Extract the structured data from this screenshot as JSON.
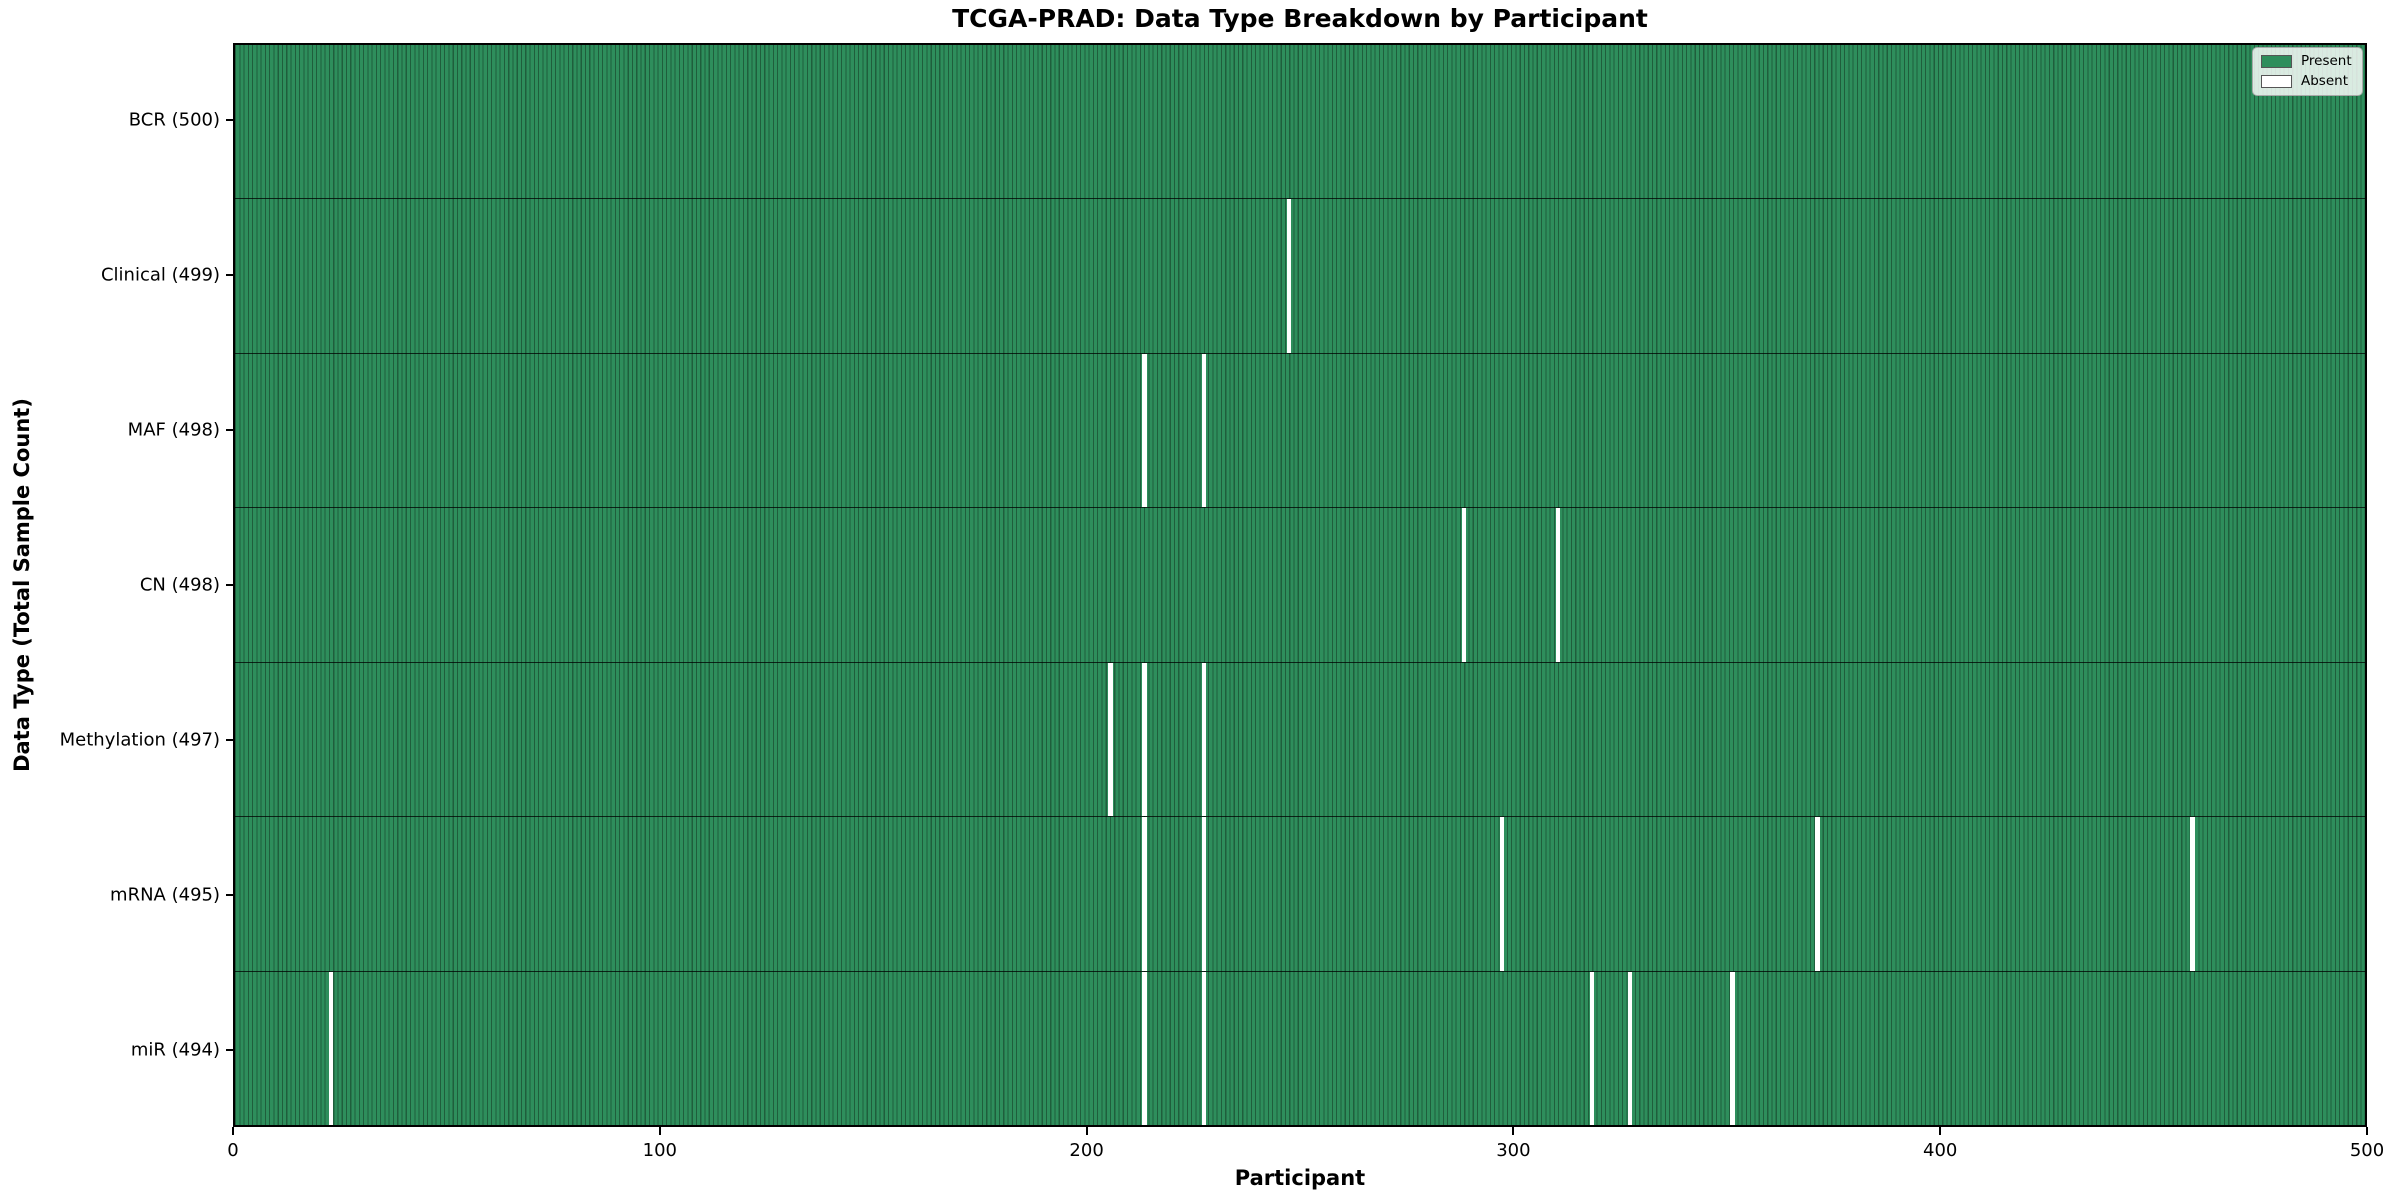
{
  "title": "TCGA-PRAD: Data Type Breakdown by Participant",
  "xlabel": "Participant",
  "ylabel": "Data Type (Total Sample Count)",
  "colors": {
    "present": "#2e8e5c",
    "present_edge": "#1f5e3c",
    "absent": "#ffffff"
  },
  "legend": {
    "present_label": "Present",
    "absent_label": "Absent"
  },
  "chart_data": {
    "type": "heatmap",
    "title": "TCGA-PRAD: Data Type Breakdown by Participant",
    "xlabel": "Participant",
    "ylabel": "Data Type (Total Sample Count)",
    "x_axis": {
      "min": 0,
      "max": 500,
      "ticks": [
        0,
        100,
        200,
        300,
        400,
        500
      ]
    },
    "n_participants": 500,
    "legend_position": "upper right",
    "legend_entries": [
      {
        "label": "Present",
        "value": 1
      },
      {
        "label": "Absent",
        "value": 0
      }
    ],
    "rows": [
      {
        "label": "BCR (500)",
        "data_type": "BCR",
        "total": 500,
        "absent_participants": []
      },
      {
        "label": "Clinical (499)",
        "data_type": "Clinical",
        "total": 499,
        "absent_participants": [
          247
        ]
      },
      {
        "label": "MAF (498)",
        "data_type": "MAF",
        "total": 498,
        "absent_participants": [
          213,
          227
        ]
      },
      {
        "label": "CN (498)",
        "data_type": "CN",
        "total": 498,
        "absent_participants": [
          288,
          310
        ]
      },
      {
        "label": "Methylation (497)",
        "data_type": "Methylation",
        "total": 497,
        "absent_participants": [
          205,
          213,
          227
        ]
      },
      {
        "label": "mRNA (495)",
        "data_type": "mRNA",
        "total": 495,
        "absent_participants": [
          213,
          227,
          297,
          371,
          459
        ]
      },
      {
        "label": "miR (494)",
        "data_type": "miR",
        "total": 494,
        "absent_participants": [
          22,
          213,
          227,
          318,
          327,
          351
        ]
      }
    ]
  }
}
